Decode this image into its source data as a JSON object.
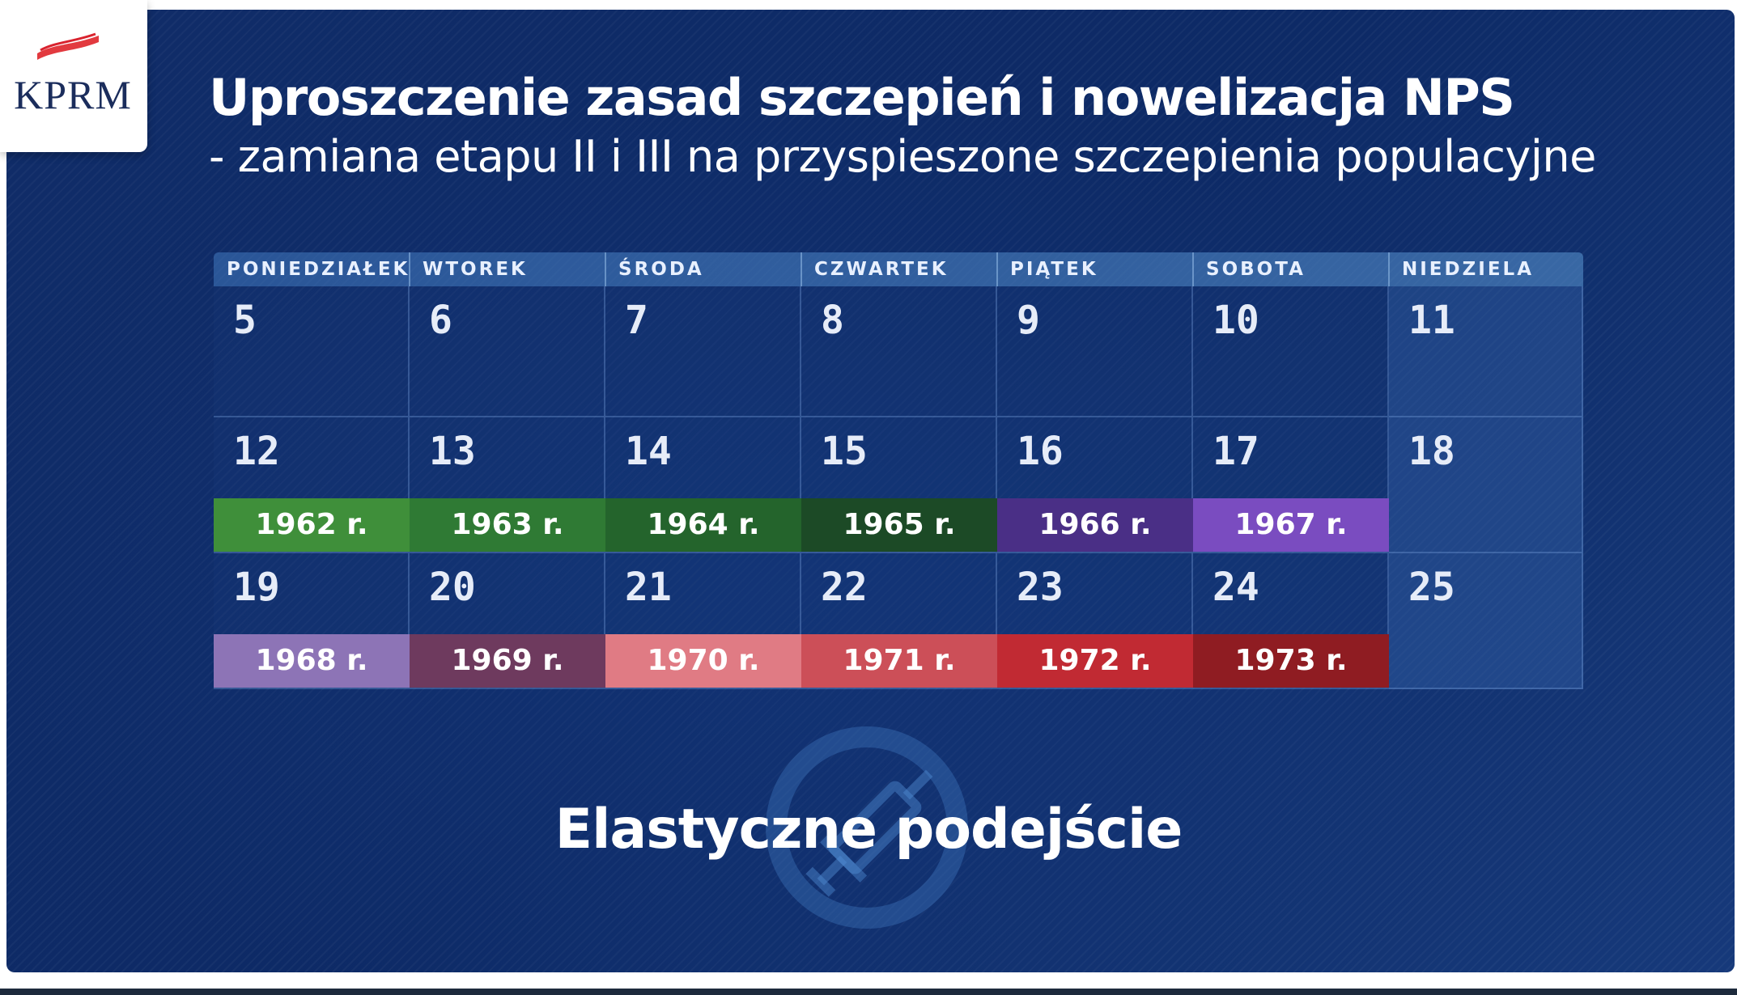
{
  "logo": {
    "text": "KPRM",
    "flag_colors": [
      "#ffffff",
      "#d9232e"
    ]
  },
  "header": {
    "title": "Uproszczenie zasad szczepień i nowelizacja NPS",
    "subtitle": "- zamiana etapu II i III na przyspieszone szczepienia populacyjne"
  },
  "calendar": {
    "days": [
      "PONIEDZIAŁEK",
      "WTOREK",
      "ŚRODA",
      "CZWARTEK",
      "PIĄTEK",
      "SOBOTA",
      "NIEDZIELA"
    ],
    "weeks": [
      {
        "dates": [
          "5",
          "6",
          "7",
          "8",
          "9",
          "10",
          "11"
        ],
        "years": []
      },
      {
        "dates": [
          "12",
          "13",
          "14",
          "15",
          "16",
          "17",
          "18"
        ],
        "years": [
          {
            "label": "1962 r.",
            "color": "#3f8f3a"
          },
          {
            "label": "1963 r.",
            "color": "#2f7a34"
          },
          {
            "label": "1964 r.",
            "color": "#24642c"
          },
          {
            "label": "1965 r.",
            "color": "#1c4a26"
          },
          {
            "label": "1966 r.",
            "color": "#4a2f86"
          },
          {
            "label": "1967 r.",
            "color": "#7a4cc0"
          }
        ]
      },
      {
        "dates": [
          "19",
          "20",
          "21",
          "22",
          "23",
          "24",
          "25"
        ],
        "years": [
          {
            "label": "1968 r.",
            "color": "#8d74b6"
          },
          {
            "label": "1969 r.",
            "color": "#6e3a5e"
          },
          {
            "label": "1970 r.",
            "color": "#e07b84"
          },
          {
            "label": "1971 r.",
            "color": "#cc4f58"
          },
          {
            "label": "1972 r.",
            "color": "#c12a33"
          },
          {
            "label": "1973 r.",
            "color": "#8f1c22"
          }
        ]
      }
    ]
  },
  "footer": {
    "label": "Elastyczne podejście"
  },
  "icons": {
    "syringe": "syringe-icon"
  }
}
